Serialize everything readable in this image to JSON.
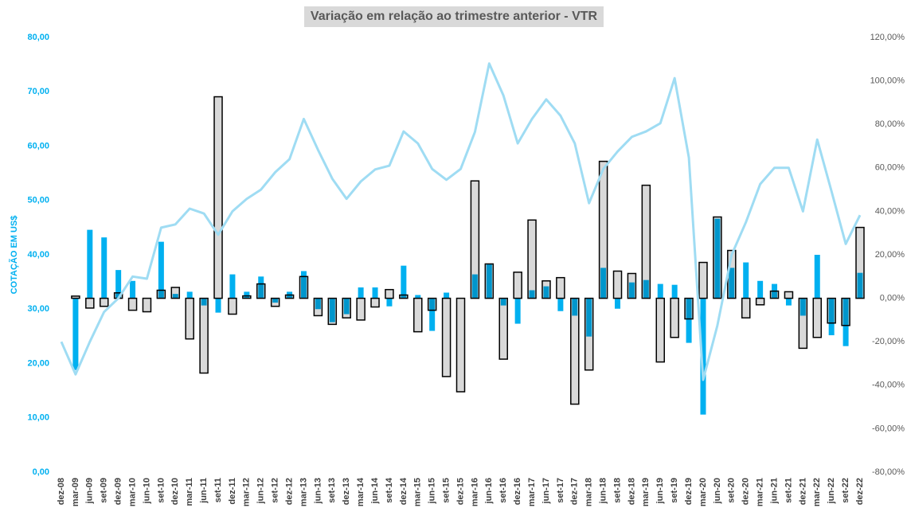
{
  "chart_data": {
    "type": "combo",
    "title": "Variação em relação ao trimestre anterior - VTR",
    "y_label": "COTAÇÃO EM US$",
    "categories": [
      "dez-08",
      "mar-09",
      "jun-09",
      "set-09",
      "dez-09",
      "mar-10",
      "jun-10",
      "set-10",
      "dez-10",
      "mar-11",
      "jun-11",
      "set-11",
      "dez-11",
      "mar-12",
      "jun-12",
      "set-12",
      "dez-12",
      "mar-13",
      "jun-13",
      "set-13",
      "dez-13",
      "mar-14",
      "jun-14",
      "set-14",
      "dez-14",
      "mar-15",
      "jun-15",
      "set-15",
      "dez-15",
      "mar-16",
      "jun-16",
      "set-16",
      "dez-16",
      "mar-17",
      "jun-17",
      "set-17",
      "dez-17",
      "mar-18",
      "jun-18",
      "set-18",
      "dez-18",
      "mar-19",
      "jun-19",
      "set-19",
      "dez-19",
      "mar-20",
      "jun-20",
      "set-20",
      "dez-20",
      "mar-21",
      "jun-21",
      "set-21",
      "dez-21",
      "mar-22",
      "jun-22",
      "set-22",
      "dez-22"
    ],
    "ylim": [
      0,
      80
    ],
    "yticks": [
      {
        "value": 0,
        "label": "0,00"
      },
      {
        "value": 10,
        "label": "10,00"
      },
      {
        "value": 20,
        "label": "20,00"
      },
      {
        "value": 30,
        "label": "30,00"
      },
      {
        "value": 40,
        "label": "40,00"
      },
      {
        "value": 50,
        "label": "50,00"
      },
      {
        "value": 60,
        "label": "60,00"
      },
      {
        "value": 70,
        "label": "70,00"
      },
      {
        "value": 80,
        "label": "80,00"
      }
    ],
    "y2lim": [
      -80,
      120
    ],
    "y2ticks": [
      {
        "value": -80,
        "label": "-80,00%"
      },
      {
        "value": -60,
        "label": "-60,00%"
      },
      {
        "value": -40,
        "label": "-40,00%"
      },
      {
        "value": -20,
        "label": "-20,00%"
      },
      {
        "value": 0,
        "label": "0,00%"
      },
      {
        "value": 20,
        "label": "20,00%"
      },
      {
        "value": 40,
        "label": "40,00%"
      },
      {
        "value": 60,
        "label": "60,00%"
      },
      {
        "value": 80,
        "label": "80,00%"
      },
      {
        "value": 100,
        "label": "100,00%"
      },
      {
        "value": 120,
        "label": "120,00%"
      }
    ],
    "series": [
      {
        "type": "bar",
        "axis": "y2",
        "color": "#d9d9d9",
        "values": [
          null,
          1,
          -4.5,
          -3.7,
          2.5,
          -5.5,
          -6.2,
          3.7,
          5,
          -18.7,
          -34.4,
          92.7,
          -7.3,
          1.1,
          6.6,
          -3.7,
          1.5,
          10,
          -8,
          -12,
          -9,
          -10,
          -4,
          4,
          1.5,
          -15.4,
          -5.5,
          -36,
          -43,
          54,
          15.8,
          -28,
          12,
          36,
          8,
          9.5,
          -48.7,
          -33,
          63,
          12.5,
          11.4,
          52,
          -29.3,
          -18,
          -9.5,
          16.5,
          37.4,
          22,
          -9,
          -3,
          3.3,
          3,
          -23,
          -18,
          -11.4,
          -12.5,
          32.6
        ]
      },
      {
        "type": "bar",
        "axis": "y2",
        "color": "#00b0f0",
        "values": [
          null,
          -33,
          31.5,
          28,
          13,
          8,
          0,
          26,
          2,
          3,
          -3.3,
          -6.6,
          11,
          3,
          10,
          -2,
          3,
          12.5,
          -5,
          -11,
          -7.3,
          5,
          5,
          -3.7,
          15,
          1.5,
          -15,
          2.6,
          0,
          11,
          15.8,
          -3.3,
          -11.7,
          3.7,
          5.5,
          -5.9,
          -8,
          -17.6,
          14,
          -4.8,
          7.3,
          8.4,
          6.6,
          6.2,
          -20.5,
          -53.5,
          36.6,
          14,
          16.5,
          8,
          6.6,
          -3.3,
          -8,
          20,
          -17,
          -22,
          11.7
        ]
      },
      {
        "type": "line",
        "axis": "y",
        "color": "#9fdcf3",
        "values": [
          24,
          18,
          24,
          29.5,
          32,
          36,
          35.6,
          45,
          45.6,
          48.5,
          47.6,
          43.7,
          48,
          50.3,
          52,
          55.2,
          57.6,
          65,
          59.3,
          54,
          50.3,
          53.5,
          55.7,
          56.4,
          62.7,
          60.5,
          55.8,
          53.8,
          55.8,
          62.6,
          75.2,
          69.3,
          60.5,
          65,
          68.6,
          65.6,
          60.5,
          49.5,
          55.8,
          59,
          61.7,
          62.7,
          64.2,
          72.5,
          57.9,
          17,
          27,
          40,
          46,
          53,
          56,
          56,
          48,
          61.2,
          51.7,
          42,
          47.3
        ]
      }
    ]
  }
}
